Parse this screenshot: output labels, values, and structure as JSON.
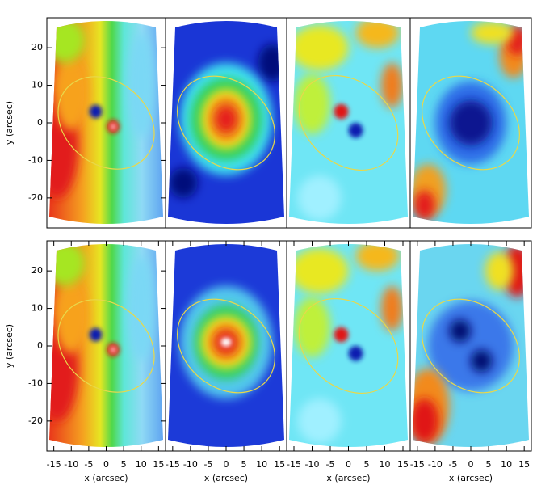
{
  "chart_data": [
    {
      "type": "image",
      "xlim": [
        -17,
        17
      ],
      "ylim": [
        -28,
        28
      ],
      "yticks": [
        -20,
        -10,
        0,
        10,
        20
      ],
      "ylabel": "y (arcsec)"
    },
    {
      "type": "image",
      "xlim": [
        -17,
        17
      ],
      "ylim": [
        -28,
        28
      ]
    },
    {
      "type": "image",
      "xlim": [
        -17,
        17
      ],
      "ylim": [
        -28,
        28
      ]
    },
    {
      "type": "image",
      "xlim": [
        -17,
        17
      ],
      "ylim": [
        -28,
        28
      ]
    },
    {
      "type": "image",
      "xlim": [
        -17,
        17
      ],
      "ylim": [
        -28,
        28
      ],
      "yticks": [
        -20,
        -10,
        0,
        10,
        20
      ],
      "ylabel": "y (arcsec)",
      "xticks": [
        -15,
        -10,
        -5,
        0,
        5,
        10,
        15
      ],
      "xlabel": "x (arcsec)"
    },
    {
      "type": "image",
      "xlim": [
        -17,
        17
      ],
      "ylim": [
        -28,
        28
      ],
      "xticks": [
        -15,
        -10,
        -5,
        0,
        5,
        10,
        15
      ],
      "xlabel": "x (arcsec)"
    },
    {
      "type": "image",
      "xlim": [
        -17,
        17
      ],
      "ylim": [
        -28,
        28
      ],
      "xticks": [
        -15,
        -10,
        -5,
        0,
        5,
        10,
        15
      ],
      "xlabel": "x (arcsec)"
    },
    {
      "type": "image",
      "xlim": [
        -17,
        17
      ],
      "ylim": [
        -28,
        28
      ],
      "xticks": [
        -15,
        -10,
        -5,
        0,
        5,
        10,
        15
      ],
      "xlabel": "x (arcsec)"
    }
  ]
}
